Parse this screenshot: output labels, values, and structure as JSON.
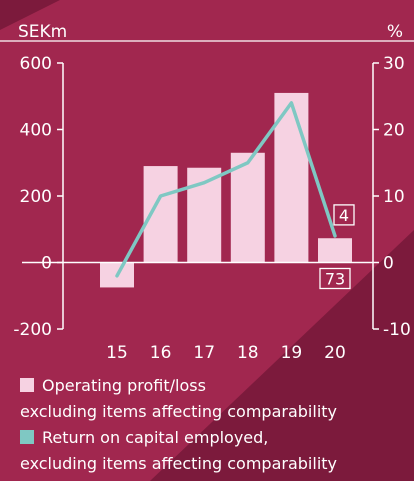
{
  "colors": {
    "background": "#a1274f",
    "background_dark": "#7c1a3c",
    "bar": "#f6d2e2",
    "line": "#7fc8c3",
    "text": "#ffffff"
  },
  "chart_data": {
    "type": "bar",
    "categories": [
      "15",
      "16",
      "17",
      "18",
      "19",
      "20"
    ],
    "left_axis_unit": "SEKm",
    "right_axis_unit": "%",
    "left_ylim": [
      -200,
      600
    ],
    "right_ylim": [
      -10,
      30
    ],
    "left_ticks": [
      "600",
      "400",
      "200",
      "0",
      "-200"
    ],
    "right_ticks": [
      "30",
      "20",
      "10",
      "0",
      "-10"
    ],
    "series": [
      {
        "name": "Operating profit/loss excluding items affecting comparability",
        "kind": "bar",
        "axis": "left",
        "values": [
          -75,
          290,
          285,
          330,
          510,
          73
        ]
      },
      {
        "name": "Return on capital employed, excluding items affecting comparability",
        "kind": "line",
        "axis": "right",
        "values": [
          -2,
          10,
          12,
          15,
          24,
          4
        ]
      }
    ],
    "data_labels": [
      {
        "series": 1,
        "index": 5,
        "text": "4"
      },
      {
        "series": 0,
        "index": 5,
        "text": "73"
      }
    ],
    "grid": false
  },
  "legend": {
    "item1_line1": "Operating profit/loss",
    "item1_line2": "excluding items affecting comparability",
    "item2_line1": "Return on capital employed,",
    "item2_line2": "excluding items affecting comparability"
  }
}
